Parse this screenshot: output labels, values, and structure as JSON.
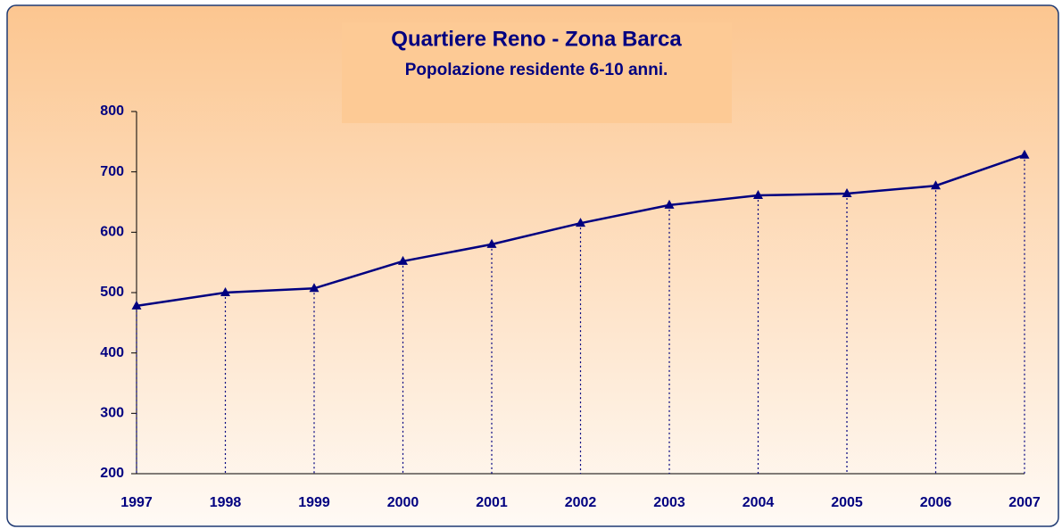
{
  "chart_data": {
    "type": "line",
    "title": "Quartiere Reno - Zona Barca",
    "subtitle": "Popolazione residente 6-10 anni.",
    "categories": [
      "1997",
      "1998",
      "1999",
      "2000",
      "2001",
      "2002",
      "2003",
      "2004",
      "2005",
      "2006",
      "2007"
    ],
    "series": [
      {
        "name": "Popolazione residente 6-10 anni",
        "color": "#000080",
        "values": [
          478,
          500,
          507,
          552,
          580,
          615,
          645,
          661,
          664,
          677,
          728
        ]
      }
    ],
    "ylim": [
      200,
      800
    ],
    "yticks": [
      200,
      300,
      400,
      500,
      600,
      700,
      800
    ],
    "drop_lines": true,
    "marker": "triangle",
    "grid": false
  }
}
